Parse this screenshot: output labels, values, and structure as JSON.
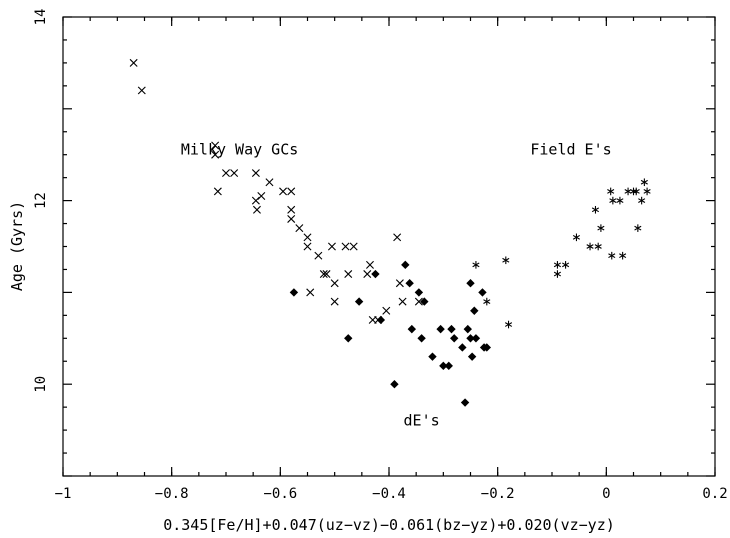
{
  "chart_data": {
    "type": "scatter",
    "title": "",
    "xlabel": "0.345[Fe/H]+0.047(uz−vz)−0.061(bz−yz)+0.020(vz−yz)",
    "ylabel": "Age (Gyrs)",
    "xlim": [
      -1,
      0.2
    ],
    "ylim": [
      9,
      14
    ],
    "x_ticks": [
      -1,
      -0.8,
      -0.6,
      -0.4,
      -0.2,
      0,
      0.2
    ],
    "x_tick_labels": [
      "−1",
      "−0.8",
      "−0.6",
      "−0.4",
      "−0.2",
      "0",
      "0.2"
    ],
    "y_ticks": [
      10,
      12,
      14
    ],
    "y_tick_labels": [
      "10",
      "12",
      "14"
    ],
    "grid": false,
    "annotations": [
      {
        "text": "Milky Way GCs",
        "x": -0.675,
        "y": 12.5
      },
      {
        "text": "Field E's",
        "x": -0.065,
        "y": 12.5
      },
      {
        "text": "dE's",
        "x": -0.34,
        "y": 9.55
      }
    ],
    "series": [
      {
        "marker": "x",
        "points": [
          [
            -0.87,
            13.5
          ],
          [
            -0.855,
            13.2
          ],
          [
            -0.72,
            12.6
          ],
          [
            -0.72,
            12.5
          ],
          [
            -0.715,
            12.1
          ],
          [
            -0.7,
            12.3
          ],
          [
            -0.685,
            12.3
          ],
          [
            -0.645,
            12.3
          ],
          [
            -0.645,
            12.0
          ],
          [
            -0.643,
            11.9
          ],
          [
            -0.635,
            12.05
          ],
          [
            -0.62,
            12.2
          ],
          [
            -0.595,
            12.1
          ],
          [
            -0.58,
            12.1
          ],
          [
            -0.58,
            11.9
          ],
          [
            -0.58,
            11.8
          ],
          [
            -0.565,
            11.7
          ],
          [
            -0.55,
            11.6
          ],
          [
            -0.55,
            11.5
          ],
          [
            -0.545,
            11.0
          ],
          [
            -0.53,
            11.4
          ],
          [
            -0.52,
            11.2
          ],
          [
            -0.515,
            11.2
          ],
          [
            -0.505,
            11.5
          ],
          [
            -0.5,
            11.1
          ],
          [
            -0.5,
            10.9
          ],
          [
            -0.48,
            11.5
          ],
          [
            -0.475,
            11.2
          ],
          [
            -0.465,
            11.5
          ],
          [
            -0.44,
            11.2
          ],
          [
            -0.435,
            11.3
          ],
          [
            -0.43,
            10.7
          ],
          [
            -0.42,
            10.7
          ],
          [
            -0.405,
            10.8
          ],
          [
            -0.385,
            11.6
          ],
          [
            -0.38,
            11.1
          ],
          [
            -0.375,
            10.9
          ],
          [
            -0.345,
            10.9
          ]
        ]
      },
      {
        "marker": "diamond",
        "points": [
          [
            -0.575,
            11.0
          ],
          [
            -0.475,
            10.5
          ],
          [
            -0.455,
            10.9
          ],
          [
            -0.425,
            11.2
          ],
          [
            -0.415,
            10.7
          ],
          [
            -0.39,
            10.0
          ],
          [
            -0.37,
            11.3
          ],
          [
            -0.362,
            11.1
          ],
          [
            -0.358,
            10.6
          ],
          [
            -0.345,
            11.0
          ],
          [
            -0.34,
            10.5
          ],
          [
            -0.335,
            10.9
          ],
          [
            -0.32,
            10.3
          ],
          [
            -0.305,
            10.6
          ],
          [
            -0.3,
            10.2
          ],
          [
            -0.29,
            10.2
          ],
          [
            -0.285,
            10.6
          ],
          [
            -0.28,
            10.5
          ],
          [
            -0.265,
            10.4
          ],
          [
            -0.26,
            9.8
          ],
          [
            -0.255,
            10.6
          ],
          [
            -0.25,
            10.5
          ],
          [
            -0.25,
            11.1
          ],
          [
            -0.247,
            10.3
          ],
          [
            -0.243,
            10.8
          ],
          [
            -0.24,
            10.5
          ],
          [
            -0.228,
            11.0
          ],
          [
            -0.225,
            10.4
          ],
          [
            -0.22,
            10.4
          ]
        ]
      },
      {
        "marker": "asterisk",
        "points": [
          [
            -0.24,
            11.3
          ],
          [
            -0.22,
            10.9
          ],
          [
            -0.185,
            11.35
          ],
          [
            -0.18,
            10.65
          ],
          [
            -0.09,
            11.3
          ],
          [
            -0.09,
            11.2
          ],
          [
            -0.075,
            11.3
          ],
          [
            -0.055,
            11.6
          ],
          [
            -0.03,
            11.5
          ],
          [
            -0.02,
            11.9
          ],
          [
            -0.015,
            11.5
          ],
          [
            -0.01,
            11.7
          ],
          [
            0.008,
            12.1
          ],
          [
            0.01,
            11.4
          ],
          [
            0.012,
            12.0
          ],
          [
            0.025,
            12.0
          ],
          [
            0.03,
            11.4
          ],
          [
            0.04,
            12.1
          ],
          [
            0.05,
            12.1
          ],
          [
            0.055,
            12.1
          ],
          [
            0.058,
            11.7
          ],
          [
            0.065,
            12.0
          ],
          [
            0.07,
            12.2
          ],
          [
            0.075,
            12.1
          ]
        ]
      }
    ]
  }
}
